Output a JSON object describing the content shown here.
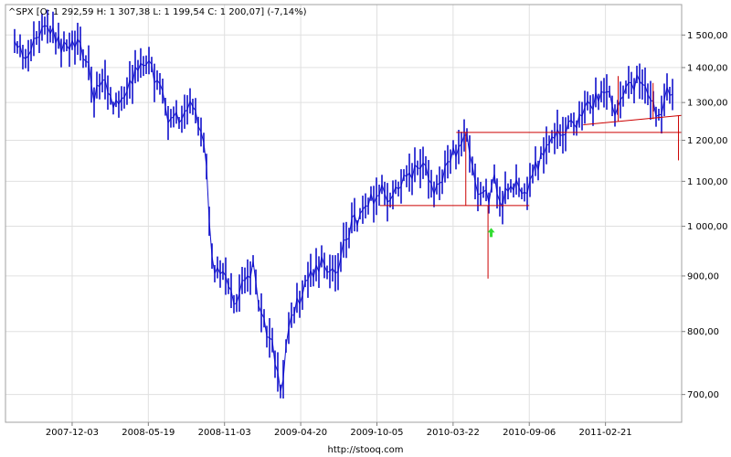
{
  "chart_data": {
    "type": "candlestick",
    "symbol": "^SPX",
    "header": "^SPX [O: 1 292,59  H: 1 307,38  L: 1 199,54  C: 1 200,07] (-7,14%)",
    "ohlc_last": {
      "open": 1292.59,
      "high": 1307.38,
      "low": 1199.54,
      "close": 1200.07,
      "change_pct": -7.14
    },
    "y_scale": "log",
    "ylim": [
      660,
      1600
    ],
    "y_ticks": [
      {
        "value": 700,
        "label": "700,00"
      },
      {
        "value": 800,
        "label": "800,00"
      },
      {
        "value": 900,
        "label": "900,00"
      },
      {
        "value": 1000,
        "label": "1 000,00"
      },
      {
        "value": 1100,
        "label": "1 100,00"
      },
      {
        "value": 1200,
        "label": "1 200,00"
      },
      {
        "value": 1300,
        "label": "1 300,00"
      },
      {
        "value": 1400,
        "label": "1 400,00"
      },
      {
        "value": 1500,
        "label": "1 500,00"
      }
    ],
    "xlim": [
      "2007-07-09",
      "2011-08-08"
    ],
    "x_ticks": [
      {
        "date": "2007-12-03",
        "label": "2007-12-03"
      },
      {
        "date": "2008-05-19",
        "label": "2008-05-19"
      },
      {
        "date": "2008-11-03",
        "label": "2008-11-03"
      },
      {
        "date": "2009-04-20",
        "label": "2009-04-20"
      },
      {
        "date": "2009-10-05",
        "label": "2009-10-05"
      },
      {
        "date": "2010-03-22",
        "label": "2010-03-22"
      },
      {
        "date": "2010-09-06",
        "label": "2010-09-06"
      },
      {
        "date": "2011-02-21",
        "label": "2011-02-21"
      }
    ],
    "grid": true,
    "path": [
      [
        "2007-07-09",
        1520
      ],
      [
        "2007-07-23",
        1545
      ],
      [
        "2007-08-06",
        1460
      ],
      [
        "2007-08-20",
        1420
      ],
      [
        "2007-09-03",
        1470
      ],
      [
        "2007-09-17",
        1500
      ],
      [
        "2007-10-08",
        1540
      ],
      [
        "2007-10-22",
        1520
      ],
      [
        "2007-11-05",
        1470
      ],
      [
        "2007-11-26",
        1440
      ],
      [
        "2007-12-10",
        1480
      ],
      [
        "2008-01-07",
        1400
      ],
      [
        "2008-01-21",
        1320
      ],
      [
        "2008-02-11",
        1350
      ],
      [
        "2008-03-10",
        1290
      ],
      [
        "2008-04-07",
        1360
      ],
      [
        "2008-05-12",
        1410
      ],
      [
        "2008-05-26",
        1390
      ],
      [
        "2008-06-16",
        1330
      ],
      [
        "2008-07-07",
        1240
      ],
      [
        "2008-07-21",
        1260
      ],
      [
        "2008-08-11",
        1290
      ],
      [
        "2008-09-01",
        1270
      ],
      [
        "2008-09-22",
        1180
      ],
      [
        "2008-10-06",
        930
      ],
      [
        "2008-10-13",
        900
      ],
      [
        "2008-10-27",
        920
      ],
      [
        "2008-11-10",
        890
      ],
      [
        "2008-11-24",
        840
      ],
      [
        "2008-12-08",
        880
      ],
      [
        "2009-01-05",
        920
      ],
      [
        "2009-01-19",
        830
      ],
      [
        "2009-02-16",
        780
      ],
      [
        "2009-03-09",
        700
      ],
      [
        "2009-03-23",
        800
      ],
      [
        "2009-04-13",
        850
      ],
      [
        "2009-05-11",
        900
      ],
      [
        "2009-06-08",
        930
      ],
      [
        "2009-07-06",
        890
      ],
      [
        "2009-07-27",
        980
      ],
      [
        "2009-08-24",
        1020
      ],
      [
        "2009-09-21",
        1060
      ],
      [
        "2009-10-19",
        1080
      ],
      [
        "2009-11-02",
        1050
      ],
      [
        "2009-11-23",
        1100
      ],
      [
        "2009-12-21",
        1120
      ],
      [
        "2010-01-18",
        1140
      ],
      [
        "2010-02-08",
        1070
      ],
      [
        "2010-03-08",
        1140
      ],
      [
        "2010-04-19",
        1210
      ],
      [
        "2010-05-03",
        1150
      ],
      [
        "2010-05-17",
        1080
      ],
      [
        "2010-06-07",
        1060
      ],
      [
        "2010-06-21",
        1110
      ],
      [
        "2010-07-05",
        1030
      ],
      [
        "2010-07-26",
        1110
      ],
      [
        "2010-08-16",
        1075
      ],
      [
        "2010-08-30",
        1050
      ],
      [
        "2010-09-13",
        1120
      ],
      [
        "2010-10-11",
        1170
      ],
      [
        "2010-11-08",
        1220
      ],
      [
        "2010-12-06",
        1230
      ],
      [
        "2011-01-03",
        1270
      ],
      [
        "2011-02-07",
        1320
      ],
      [
        "2011-02-21",
        1330
      ],
      [
        "2011-03-14",
        1280
      ],
      [
        "2011-04-04",
        1330
      ],
      [
        "2011-05-02",
        1360
      ],
      [
        "2011-05-23",
        1320
      ],
      [
        "2011-06-13",
        1270
      ],
      [
        "2011-06-27",
        1290
      ],
      [
        "2011-07-11",
        1340
      ],
      [
        "2011-07-25",
        1320
      ],
      [
        "2011-08-01",
        1280
      ],
      [
        "2011-08-08",
        1200
      ]
    ],
    "drawn_lines": [
      {
        "from": [
          "2010-03-29",
          1220
        ],
        "to": [
          "2011-08-08",
          1220
        ]
      },
      {
        "from": [
          "2009-10-12",
          1045
        ],
        "to": [
          "2010-09-06",
          1045
        ]
      },
      {
        "from": [
          "2011-01-03",
          1240
        ],
        "to": [
          "2011-08-08",
          1265
        ]
      },
      {
        "from": [
          "2010-04-19",
          1220
        ],
        "to": [
          "2010-04-19",
          1045
        ]
      },
      {
        "from": [
          "2010-06-07",
          1045
        ],
        "to": [
          "2010-06-07",
          895
        ]
      },
      {
        "from": [
          "2011-03-21",
          1375
        ],
        "to": [
          "2011-03-21",
          1250
        ]
      },
      {
        "from": [
          "2011-06-06",
          1355
        ],
        "to": [
          "2011-06-06",
          1255
        ]
      },
      {
        "from": [
          "2011-08-01",
          1265
        ],
        "to": [
          "2011-08-01",
          1150
        ]
      }
    ],
    "annotations": [
      {
        "type": "arrow-up",
        "date": "2010-06-14",
        "value": 985,
        "color": "#33dd33"
      }
    ],
    "colors": {
      "series": "#1111cc",
      "lines": "#cc0000",
      "grid": "#e0e0e0"
    }
  },
  "footer_url": "http://stooq.com"
}
